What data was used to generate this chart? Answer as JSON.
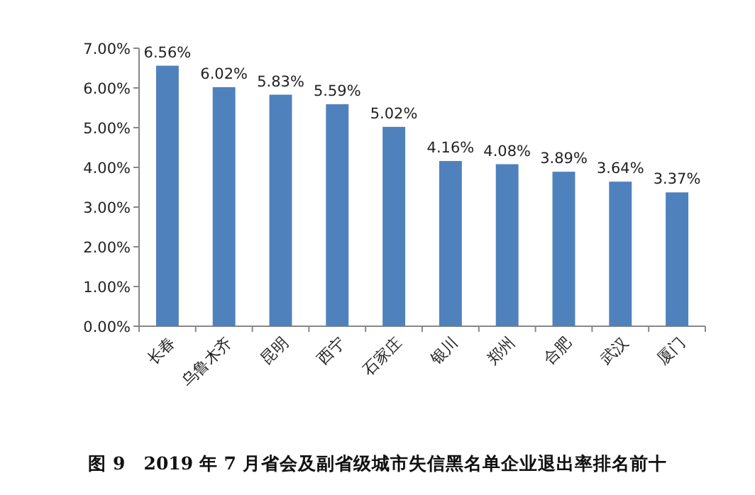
{
  "chart_data": {
    "type": "bar",
    "categories": [
      "长春",
      "乌鲁木齐",
      "昆明",
      "西宁",
      "石家庄",
      "银川",
      "郑州",
      "合肥",
      "武汉",
      "厦门"
    ],
    "values": [
      6.56,
      6.02,
      5.83,
      5.59,
      5.02,
      4.16,
      4.08,
      3.89,
      3.64,
      3.37
    ],
    "value_labels": [
      "6.56%",
      "6.02%",
      "5.83%",
      "5.59%",
      "5.02%",
      "4.16%",
      "4.08%",
      "3.89%",
      "3.64%",
      "3.37%"
    ],
    "color": "#4f81bd",
    "ylim": [
      0,
      7
    ],
    "yticks": [
      {
        "value": 0,
        "label": "0.00%"
      },
      {
        "value": 1,
        "label": "1.00%"
      },
      {
        "value": 2,
        "label": "2.00%"
      },
      {
        "value": 3,
        "label": "3.00%"
      },
      {
        "value": 4,
        "label": "4.00%"
      },
      {
        "value": 5,
        "label": "5.00%"
      },
      {
        "value": 6,
        "label": "6.00%"
      },
      {
        "value": 7,
        "label": "7.00%"
      }
    ],
    "annotations": [
      "图 9　2019 年 7 月省会及副省级城市失信黑名单企业退出率排名前十"
    ],
    "grid": false,
    "legend": false
  }
}
